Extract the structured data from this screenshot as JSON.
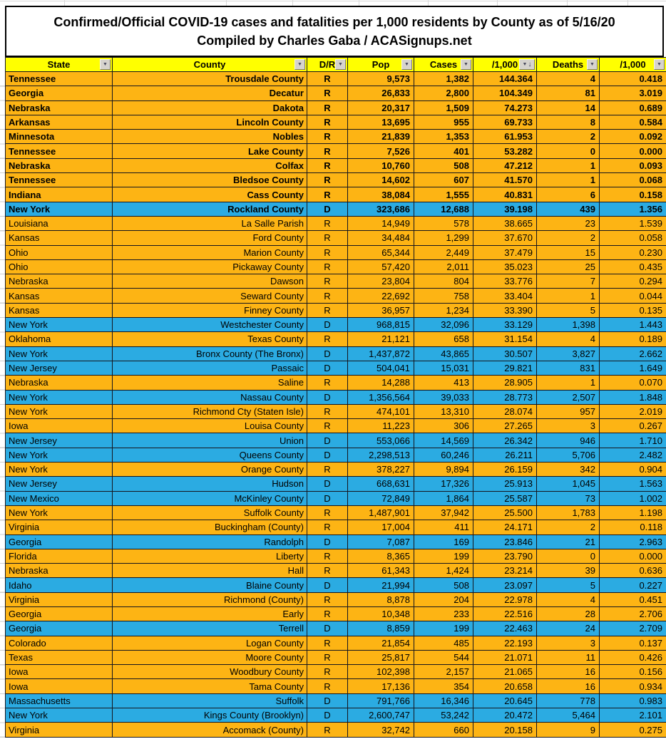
{
  "title": {
    "line1": "Confirmed/Official COVID-19 cases and fatalities per 1,000 residents by County as of 5/16/20",
    "line2": "Compiled by Charles Gaba / ACASignups.net"
  },
  "colors": {
    "header_bg": "#FFFF00",
    "republican_row": "#FDB414",
    "democrat_row": "#2BABE2",
    "border": "#15151e",
    "text": "#000000"
  },
  "table": {
    "columns": [
      {
        "id": "state",
        "label": "State",
        "filter": "dropdown"
      },
      {
        "id": "county",
        "label": "County",
        "filter": "dropdown"
      },
      {
        "id": "dr",
        "label": "D/R",
        "filter": "dropdown"
      },
      {
        "id": "pop",
        "label": "Pop",
        "filter": "dropdown"
      },
      {
        "id": "cases",
        "label": "Cases",
        "filter": "dropdown"
      },
      {
        "id": "cases-per-1000",
        "label": "/1,000",
        "filter": "dropdown-sorted"
      },
      {
        "id": "deaths",
        "label": "Deaths",
        "filter": "dropdown"
      },
      {
        "id": "deaths-per-1000",
        "label": "/1,000",
        "filter": "dropdown"
      }
    ],
    "row_fields": [
      "state",
      "county",
      "dr",
      "pop",
      "cases",
      "cases_per_1000",
      "deaths",
      "deaths_per_1000"
    ],
    "bold_row_count": 10,
    "last_row_partial": true,
    "rows": [
      [
        "Tennessee",
        "Trousdale County",
        "R",
        "9,573",
        "1,382",
        "144.364",
        "4",
        "0.418"
      ],
      [
        "Georgia",
        "Decatur",
        "R",
        "26,833",
        "2,800",
        "104.349",
        "81",
        "3.019"
      ],
      [
        "Nebraska",
        "Dakota",
        "R",
        "20,317",
        "1,509",
        "74.273",
        "14",
        "0.689"
      ],
      [
        "Arkansas",
        "Lincoln County",
        "R",
        "13,695",
        "955",
        "69.733",
        "8",
        "0.584"
      ],
      [
        "Minnesota",
        "Nobles",
        "R",
        "21,839",
        "1,353",
        "61.953",
        "2",
        "0.092"
      ],
      [
        "Tennessee",
        "Lake County",
        "R",
        "7,526",
        "401",
        "53.282",
        "0",
        "0.000"
      ],
      [
        "Nebraska",
        "Colfax",
        "R",
        "10,760",
        "508",
        "47.212",
        "1",
        "0.093"
      ],
      [
        "Tennessee",
        "Bledsoe County",
        "R",
        "14,602",
        "607",
        "41.570",
        "1",
        "0.068"
      ],
      [
        "Indiana",
        "Cass County",
        "R",
        "38,084",
        "1,555",
        "40.831",
        "6",
        "0.158"
      ],
      [
        "New York",
        "Rockland County",
        "D",
        "323,686",
        "12,688",
        "39.198",
        "439",
        "1.356"
      ],
      [
        "Louisiana",
        "La Salle Parish",
        "R",
        "14,949",
        "578",
        "38.665",
        "23",
        "1.539"
      ],
      [
        "Kansas",
        "Ford County",
        "R",
        "34,484",
        "1,299",
        "37.670",
        "2",
        "0.058"
      ],
      [
        "Ohio",
        "Marion County",
        "R",
        "65,344",
        "2,449",
        "37.479",
        "15",
        "0.230"
      ],
      [
        "Ohio",
        "Pickaway County",
        "R",
        "57,420",
        "2,011",
        "35.023",
        "25",
        "0.435"
      ],
      [
        "Nebraska",
        "Dawson",
        "R",
        "23,804",
        "804",
        "33.776",
        "7",
        "0.294"
      ],
      [
        "Kansas",
        "Seward County",
        "R",
        "22,692",
        "758",
        "33.404",
        "1",
        "0.044"
      ],
      [
        "Kansas",
        "Finney County",
        "R",
        "36,957",
        "1,234",
        "33.390",
        "5",
        "0.135"
      ],
      [
        "New York",
        "Westchester County",
        "D",
        "968,815",
        "32,096",
        "33.129",
        "1,398",
        "1.443"
      ],
      [
        "Oklahoma",
        "Texas County",
        "R",
        "21,121",
        "658",
        "31.154",
        "4",
        "0.189"
      ],
      [
        "New York",
        "Bronx County (The Bronx)",
        "D",
        "1,437,872",
        "43,865",
        "30.507",
        "3,827",
        "2.662"
      ],
      [
        "New Jersey",
        "Passaic",
        "D",
        "504,041",
        "15,031",
        "29.821",
        "831",
        "1.649"
      ],
      [
        "Nebraska",
        "Saline",
        "R",
        "14,288",
        "413",
        "28.905",
        "1",
        "0.070"
      ],
      [
        "New York",
        "Nassau County",
        "D",
        "1,356,564",
        "39,033",
        "28.773",
        "2,507",
        "1.848"
      ],
      [
        "New York",
        "Richmond Cty (Staten Isle)",
        "R",
        "474,101",
        "13,310",
        "28.074",
        "957",
        "2.019"
      ],
      [
        "Iowa",
        "Louisa County",
        "R",
        "11,223",
        "306",
        "27.265",
        "3",
        "0.267"
      ],
      [
        "New Jersey",
        "Union",
        "D",
        "553,066",
        "14,569",
        "26.342",
        "946",
        "1.710"
      ],
      [
        "New York",
        "Queens County",
        "D",
        "2,298,513",
        "60,246",
        "26.211",
        "5,706",
        "2.482"
      ],
      [
        "New York",
        "Orange County",
        "R",
        "378,227",
        "9,894",
        "26.159",
        "342",
        "0.904"
      ],
      [
        "New Jersey",
        "Hudson",
        "D",
        "668,631",
        "17,326",
        "25.913",
        "1,045",
        "1.563"
      ],
      [
        "New Mexico",
        "McKinley County",
        "D",
        "72,849",
        "1,864",
        "25.587",
        "73",
        "1.002"
      ],
      [
        "New York",
        "Suffolk County",
        "R",
        "1,487,901",
        "37,942",
        "25.500",
        "1,783",
        "1.198"
      ],
      [
        "Virginia",
        "Buckingham (County)",
        "R",
        "17,004",
        "411",
        "24.171",
        "2",
        "0.118"
      ],
      [
        "Georgia",
        "Randolph",
        "D",
        "7,087",
        "169",
        "23.846",
        "21",
        "2.963"
      ],
      [
        "Florida",
        "Liberty",
        "R",
        "8,365",
        "199",
        "23.790",
        "0",
        "0.000"
      ],
      [
        "Nebraska",
        "Hall",
        "R",
        "61,343",
        "1,424",
        "23.214",
        "39",
        "0.636"
      ],
      [
        "Idaho",
        "Blaine County",
        "D",
        "21,994",
        "508",
        "23.097",
        "5",
        "0.227"
      ],
      [
        "Virginia",
        "Richmond (County)",
        "R",
        "8,878",
        "204",
        "22.978",
        "4",
        "0.451"
      ],
      [
        "Georgia",
        "Early",
        "R",
        "10,348",
        "233",
        "22.516",
        "28",
        "2.706"
      ],
      [
        "Georgia",
        "Terrell",
        "D",
        "8,859",
        "199",
        "22.463",
        "24",
        "2.709"
      ],
      [
        "Colorado",
        "Logan County",
        "R",
        "21,854",
        "485",
        "22.193",
        "3",
        "0.137"
      ],
      [
        "Texas",
        "Moore County",
        "R",
        "25,817",
        "544",
        "21.071",
        "11",
        "0.426"
      ],
      [
        "Iowa",
        "Woodbury County",
        "R",
        "102,398",
        "2,157",
        "21.065",
        "16",
        "0.156"
      ],
      [
        "Iowa",
        "Tama County",
        "R",
        "17,136",
        "354",
        "20.658",
        "16",
        "0.934"
      ],
      [
        "Massachusetts",
        "Suffolk",
        "D",
        "791,766",
        "16,346",
        "20.645",
        "778",
        "0.983"
      ],
      [
        "New York",
        "Kings County (Brooklyn)",
        "D",
        "2,600,747",
        "53,242",
        "20.472",
        "5,464",
        "2.101"
      ],
      [
        "Virginia",
        "Accomack (County)",
        "R",
        "32,742",
        "660",
        "20.158",
        "9",
        "0.275"
      ]
    ]
  }
}
